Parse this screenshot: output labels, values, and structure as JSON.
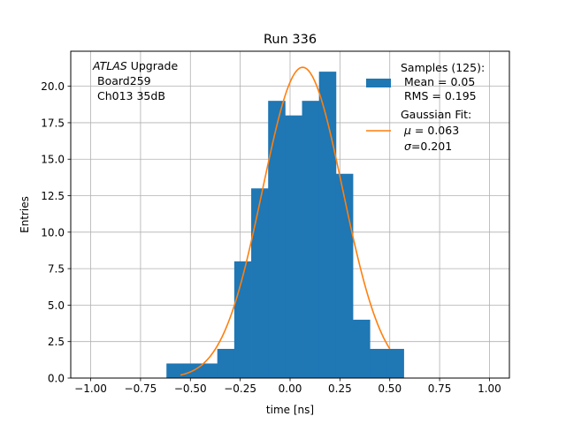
{
  "chart_data": {
    "type": "bar",
    "title": "Run 336",
    "xlabel": "time [ns]",
    "ylabel": "Entries",
    "xlim": [
      -1.1,
      1.1
    ],
    "ylim": [
      0,
      22.4
    ],
    "grid": true,
    "x_ticks": [
      -1.0,
      -0.75,
      -0.5,
      -0.25,
      0.0,
      0.25,
      0.5,
      0.75,
      1.0
    ],
    "x_tick_labels": [
      "−1.00",
      "−0.75",
      "−0.50",
      "−0.25",
      "0.00",
      "0.25",
      "0.50",
      "0.75",
      "1.00"
    ],
    "y_ticks": [
      0,
      2.5,
      5,
      7.5,
      10,
      12.5,
      15,
      17.5,
      20
    ],
    "y_tick_labels": [
      "0.0",
      "2.5",
      "5.0",
      "7.5",
      "10.0",
      "12.5",
      "15.0",
      "17.5",
      "20.0"
    ],
    "annotation": {
      "italic": "ATLAS",
      "rest": " Upgrade",
      "line2": "Board259",
      "line3": "Ch013 35dB"
    },
    "legend": {
      "placement": "top-right",
      "hist_lines": [
        "Samples (125):",
        "Mean = 0.05",
        "RMS = 0.195"
      ],
      "fit_title": "Gaussian Fit:",
      "fit_mu_value": " = 0.063",
      "fit_sigma_value": "=0.201"
    },
    "histogram": {
      "name": "Samples (125)",
      "color": "#1f77b4",
      "bin_edges": [
        -0.62,
        -0.535,
        -0.45,
        -0.365,
        -0.28,
        -0.195,
        -0.11,
        -0.025,
        0.06,
        0.145,
        0.23,
        0.315,
        0.4,
        0.485,
        0.57
      ],
      "counts": [
        1,
        1,
        1,
        2,
        8,
        13,
        19,
        18,
        19,
        21,
        14,
        4,
        2,
        2
      ]
    },
    "fit": {
      "name": "Gaussian Fit",
      "color": "#ff7f0e",
      "mu": 0.063,
      "sigma": 0.201,
      "amplitude": 21.3,
      "x_range": [
        -0.55,
        0.5
      ]
    }
  }
}
